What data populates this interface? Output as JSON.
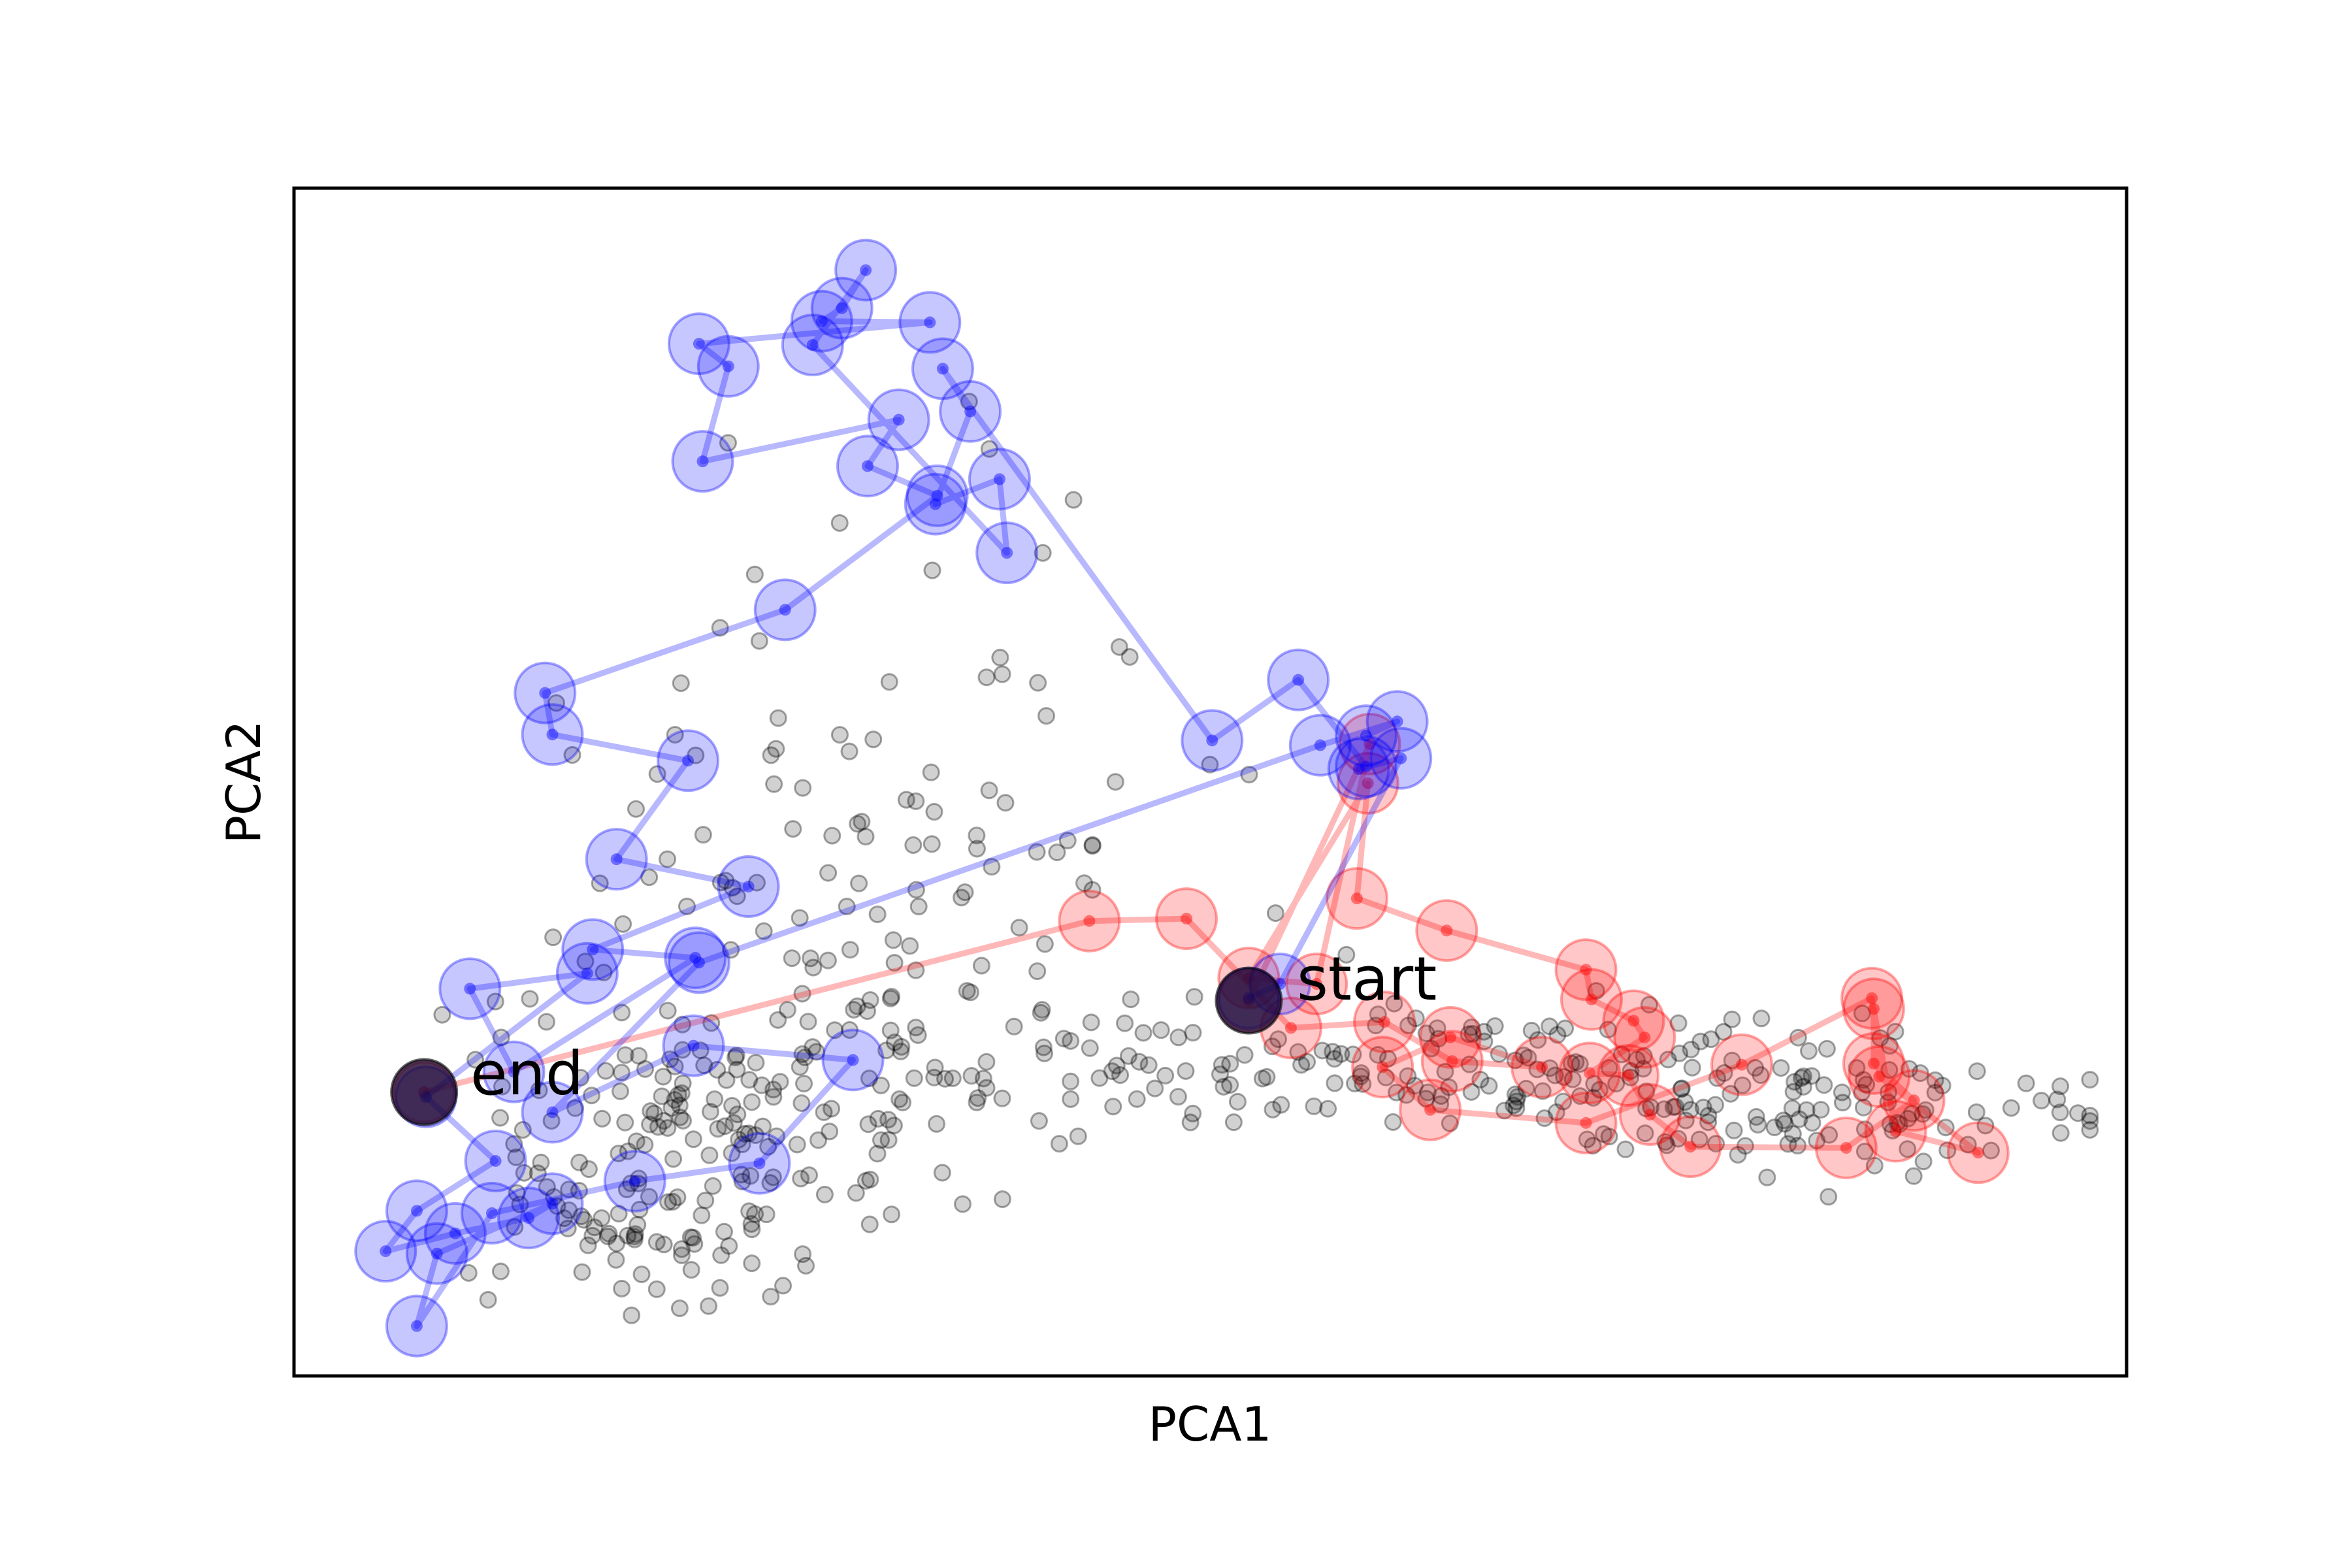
{
  "chart_data": {
    "type": "scatter",
    "xlabel": "PCA1",
    "ylabel": "PCA2",
    "xlim": [
      0,
      100
    ],
    "ylim": [
      0,
      100
    ],
    "ticks": "none",
    "grid": false,
    "colors": {
      "background_points": "#000000",
      "trajectory_a": "#0000ff",
      "trajectory_b": "#ff0000",
      "markers": "#1a0a33"
    },
    "annotations": [
      {
        "text": "start",
        "x": 52.1,
        "y": 31.6
      },
      {
        "text": "end",
        "x": 7.1,
        "y": 23.9
      }
    ],
    "background": {
      "count": 600,
      "seed": 7,
      "clusters": [
        {
          "cx": 19,
          "cy": 13,
          "sx": 4.5,
          "sy": 3.5,
          "n": 80
        },
        {
          "cx": 25,
          "cy": 24,
          "sx": 6.5,
          "sy": 5.5,
          "n": 140
        },
        {
          "cx": 33,
          "cy": 45,
          "sx": 8.5,
          "sy": 13.5,
          "n": 110
        },
        {
          "cx": 59,
          "cy": 26,
          "sx": 11.0,
          "sy": 2.8,
          "n": 160
        },
        {
          "cx": 83,
          "cy": 23,
          "sx": 7.5,
          "sy": 2.5,
          "n": 110
        }
      ]
    },
    "series": [
      {
        "x": [
          52.1,
          53.8,
          60.4,
          58.1,
          58.5,
          54.8,
          50.1,
          35.4,
          36.9,
          35.0,
          38.5,
          38.9,
          28.3,
          31.2,
          29.9,
          28.8,
          34.7,
          22.1,
          23.7,
          22.3,
          33.0,
          31.3,
          35.1,
          26.8,
          13.7,
          14.1,
          21.5,
          17.6,
          24.8,
          16.3,
          21.9,
          12.0,
          9.6,
          16.0,
          7.2,
          11.0,
          6.7,
          5.0,
          8.8,
          12.8,
          14.1,
          7.8,
          6.7,
          10.8,
          18.6,
          25.4,
          30.5,
          21.8,
          14.1,
          22.1,
          56.0,
          60.2,
          58.5
        ],
        "y": [
          31.8,
          33.0,
          52.0,
          51.1,
          51.3,
          58.6,
          53.5,
          84.8,
          81.2,
          73.4,
          75.5,
          69.3,
          86.8,
          93.1,
          89.9,
          88.8,
          88.7,
          86.9,
          85.0,
          77.0,
          80.5,
          76.6,
          74.1,
          64.5,
          57.5,
          54.0,
          51.8,
          43.5,
          41.2,
          35.9,
          35.2,
          25.6,
          32.6,
          33.9,
          23.5,
          18.1,
          13.9,
          10.5,
          12.0,
          13.3,
          14.5,
          10.3,
          4.2,
          13.7,
          16.4,
          17.9,
          26.6,
          27.8,
          22.2,
          34.8,
          53.1,
          55.1,
          53.9
        ]
      },
      {
        "x": [
          52.1,
          58.7,
          55.8,
          52.1,
          58.6,
          58.0,
          62.9,
          70.5,
          70.8,
          73.1,
          73.7,
          70.7,
          72.8,
          74.0,
          76.2,
          84.7,
          88.4,
          86.2,
          86.2,
          87.4,
          91.9,
          86.5,
          86.1,
          79.0,
          70.5,
          62.0,
          59.4,
          63.1,
          68.1,
          63.2,
          59.5,
          54.4,
          48.7,
          43.4,
          7.1
        ],
        "y": [
          31.6,
          53.2,
          33.0,
          33.5,
          49.9,
          40.2,
          37.5,
          34.2,
          31.7,
          29.9,
          28.5,
          25.5,
          25.3,
          22.0,
          19.3,
          19.2,
          23.2,
          26.3,
          30.9,
          20.6,
          18.8,
          25.2,
          31.8,
          26.2,
          21.3,
          22.4,
          26.0,
          28.5,
          26.0,
          26.5,
          29.8,
          29.3,
          38.5,
          38.3,
          23.9
        ]
      }
    ]
  }
}
